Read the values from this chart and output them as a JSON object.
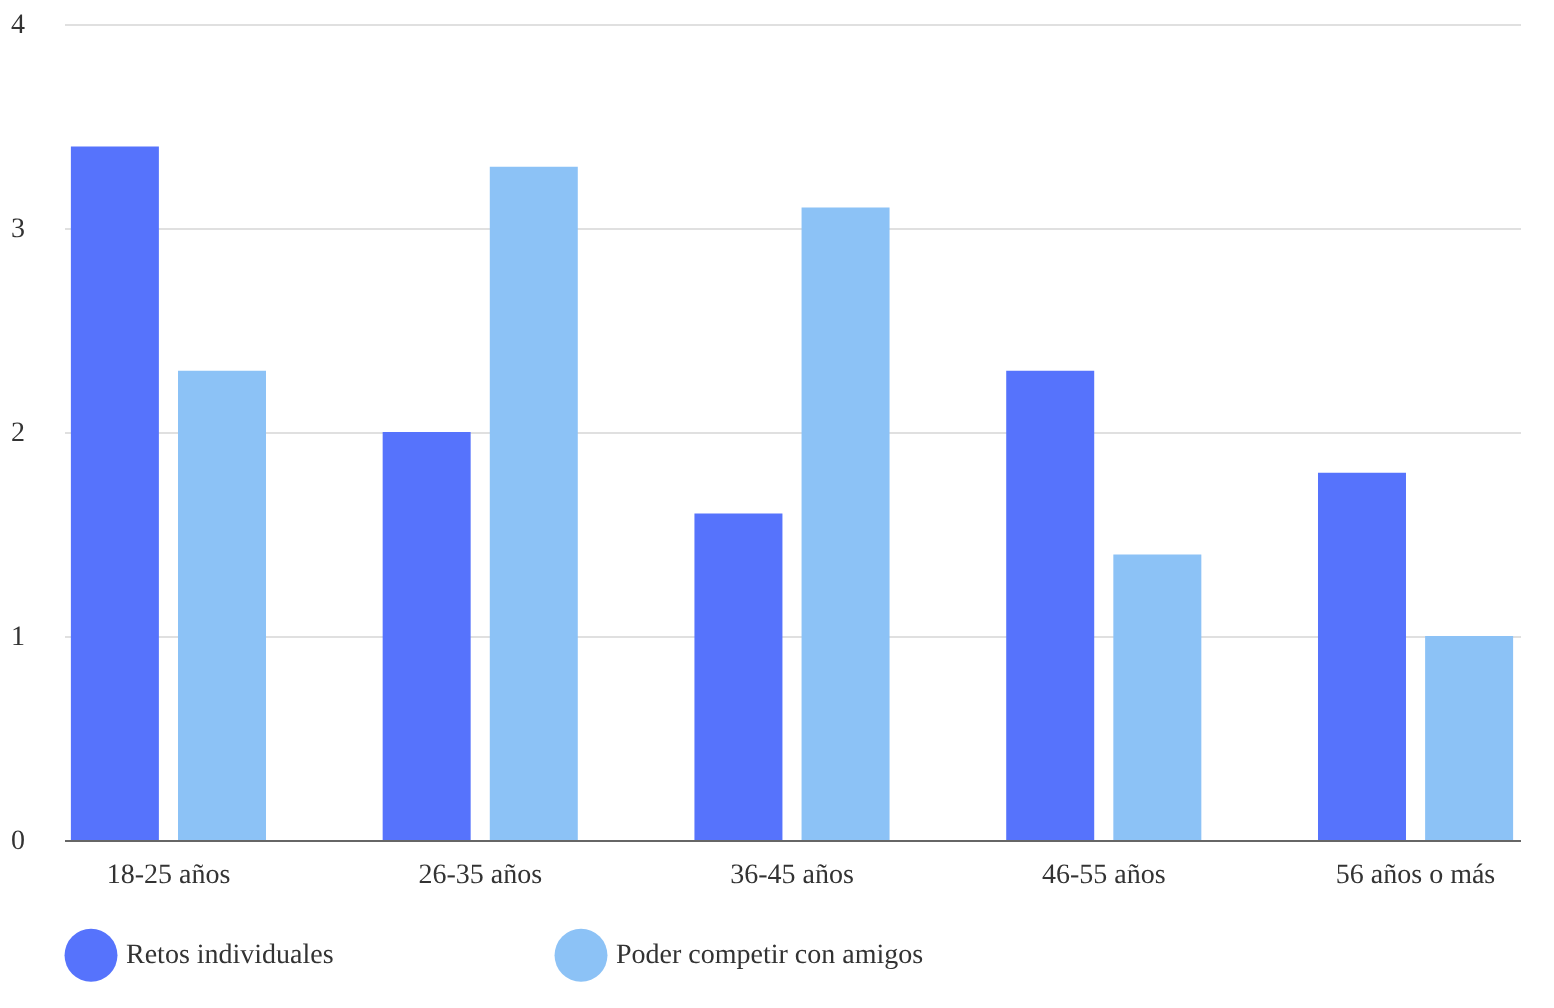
{
  "chart_data": {
    "type": "bar",
    "categories": [
      "18-25 años",
      "26-35 años",
      "36-45 años",
      "46-55 años",
      "56 años o más"
    ],
    "series": [
      {
        "name": "Retos individuales",
        "color": "#5673fc",
        "values": [
          3.4,
          2.0,
          1.6,
          2.3,
          1.8
        ]
      },
      {
        "name": "Poder competir con amigos",
        "color": "#8cc2f6",
        "values": [
          2.3,
          3.3,
          3.1,
          1.4,
          1.0
        ]
      }
    ],
    "ylim": [
      0,
      4
    ],
    "yticks": [
      0,
      1,
      2,
      3,
      4
    ],
    "grid": "y",
    "legend": "bottom"
  }
}
